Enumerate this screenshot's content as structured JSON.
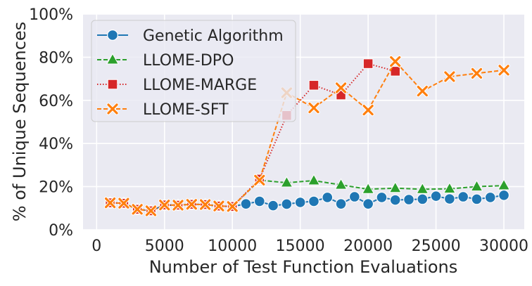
{
  "chart_data": {
    "type": "line",
    "title": "",
    "xlabel": "Number of Test Function Evaluations",
    "ylabel": "% of Unique Sequences",
    "xlim": [
      -1000,
      31500
    ],
    "ylim": [
      0,
      100
    ],
    "xticks": [
      0,
      5000,
      10000,
      15000,
      20000,
      25000,
      30000
    ],
    "yticks": [
      0,
      20,
      40,
      60,
      80,
      100
    ],
    "xtick_labels": [
      "0",
      "5000",
      "10000",
      "15000",
      "20000",
      "25000",
      "30000"
    ],
    "ytick_labels": [
      "0%",
      "20%",
      "40%",
      "60%",
      "80%",
      "100%"
    ],
    "grid": true,
    "legend_position": "top-left",
    "series": [
      {
        "name": "Genetic Algorithm",
        "color": "#1f77b4",
        "marker": "circle",
        "line_style": "solid",
        "x": [
          1000,
          2000,
          3000,
          4000,
          5000,
          6000,
          7000,
          8000,
          9000,
          10000,
          11000,
          12000,
          13000,
          14000,
          15000,
          16000,
          17000,
          18000,
          19000,
          20000,
          21000,
          22000,
          23000,
          24000,
          25000,
          26000,
          27000,
          28000,
          29000,
          30000
        ],
        "values": [
          12.5,
          12.3,
          9.5,
          8.8,
          11.5,
          11.4,
          11.8,
          11.7,
          11.0,
          10.8,
          12.0,
          13.2,
          11.2,
          11.9,
          12.7,
          13.2,
          15.0,
          12.0,
          15.3,
          12.0,
          15.0,
          13.8,
          14.0,
          14.2,
          15.6,
          14.3,
          15.3,
          14.2,
          15.0,
          16.0
        ]
      },
      {
        "name": "LLOME-DPO",
        "color": "#2ca02c",
        "marker": "triangle",
        "line_style": "dashed",
        "x": [
          1000,
          2000,
          3000,
          4000,
          5000,
          6000,
          7000,
          8000,
          9000,
          10000,
          12000,
          14000,
          16000,
          18000,
          20000,
          22000,
          24000,
          26000,
          28000,
          30000
        ],
        "values": [
          12.5,
          12.3,
          9.5,
          8.8,
          11.5,
          11.4,
          11.8,
          11.7,
          11.0,
          10.8,
          23.0,
          21.8,
          22.8,
          20.8,
          18.8,
          19.3,
          18.8,
          19.0,
          20.0,
          20.5
        ]
      },
      {
        "name": "LLOME-MARGE",
        "color": "#d62728",
        "marker": "square",
        "line_style": "dotted",
        "x": [
          1000,
          2000,
          3000,
          4000,
          5000,
          6000,
          7000,
          8000,
          9000,
          10000,
          12000,
          14000,
          16000,
          18000,
          20000,
          22000
        ],
        "values": [
          12.5,
          12.3,
          9.5,
          8.8,
          11.5,
          11.4,
          11.8,
          11.7,
          11.0,
          10.8,
          23.5,
          53.0,
          67.0,
          62.5,
          77.0,
          73.5
        ]
      },
      {
        "name": "LLOME-SFT",
        "color": "#ff7f0e",
        "marker": "x",
        "line_style": "dashed",
        "x": [
          1000,
          2000,
          3000,
          4000,
          5000,
          6000,
          7000,
          8000,
          9000,
          10000,
          12000,
          14000,
          16000,
          18000,
          20000,
          22000,
          24000,
          26000,
          28000,
          30000
        ],
        "values": [
          12.5,
          12.3,
          9.5,
          8.8,
          11.5,
          11.4,
          11.8,
          11.7,
          11.0,
          10.8,
          23.0,
          63.5,
          56.5,
          65.8,
          55.5,
          78.0,
          64.3,
          71.0,
          72.5,
          74.0
        ]
      }
    ]
  }
}
